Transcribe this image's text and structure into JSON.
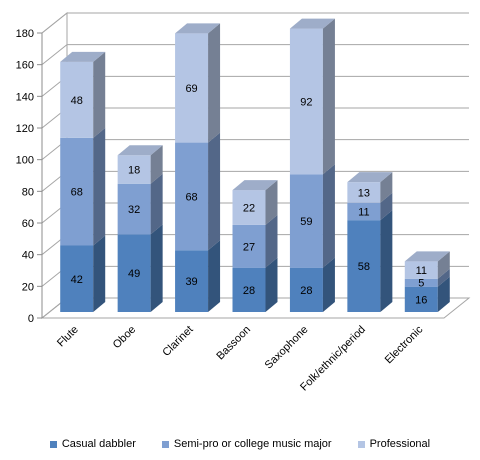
{
  "chart_data": {
    "type": "bar",
    "stacked": true,
    "three_d": true,
    "categories": [
      "Flute",
      "Oboe",
      "Clarinet",
      "Bassoon",
      "Saxophone",
      "Folk/ethnic/period",
      "Electronic"
    ],
    "series": [
      {
        "name": "Casual dabbler",
        "values": [
          42,
          49,
          39,
          28,
          28,
          58,
          16
        ],
        "color": "#4f81bd"
      },
      {
        "name": "Semi-pro or college music major",
        "values": [
          68,
          32,
          68,
          27,
          59,
          11,
          5
        ],
        "color": "#7f9fd1"
      },
      {
        "name": "Professional",
        "values": [
          48,
          18,
          69,
          22,
          92,
          13,
          11
        ],
        "color": "#b4c5e4"
      }
    ],
    "ylim": [
      0,
      180
    ],
    "yticks": [
      "0",
      "20",
      "40",
      "60",
      "80",
      "100",
      "120",
      "140",
      "160",
      "180"
    ],
    "grid": true,
    "legend_position": "bottom"
  }
}
